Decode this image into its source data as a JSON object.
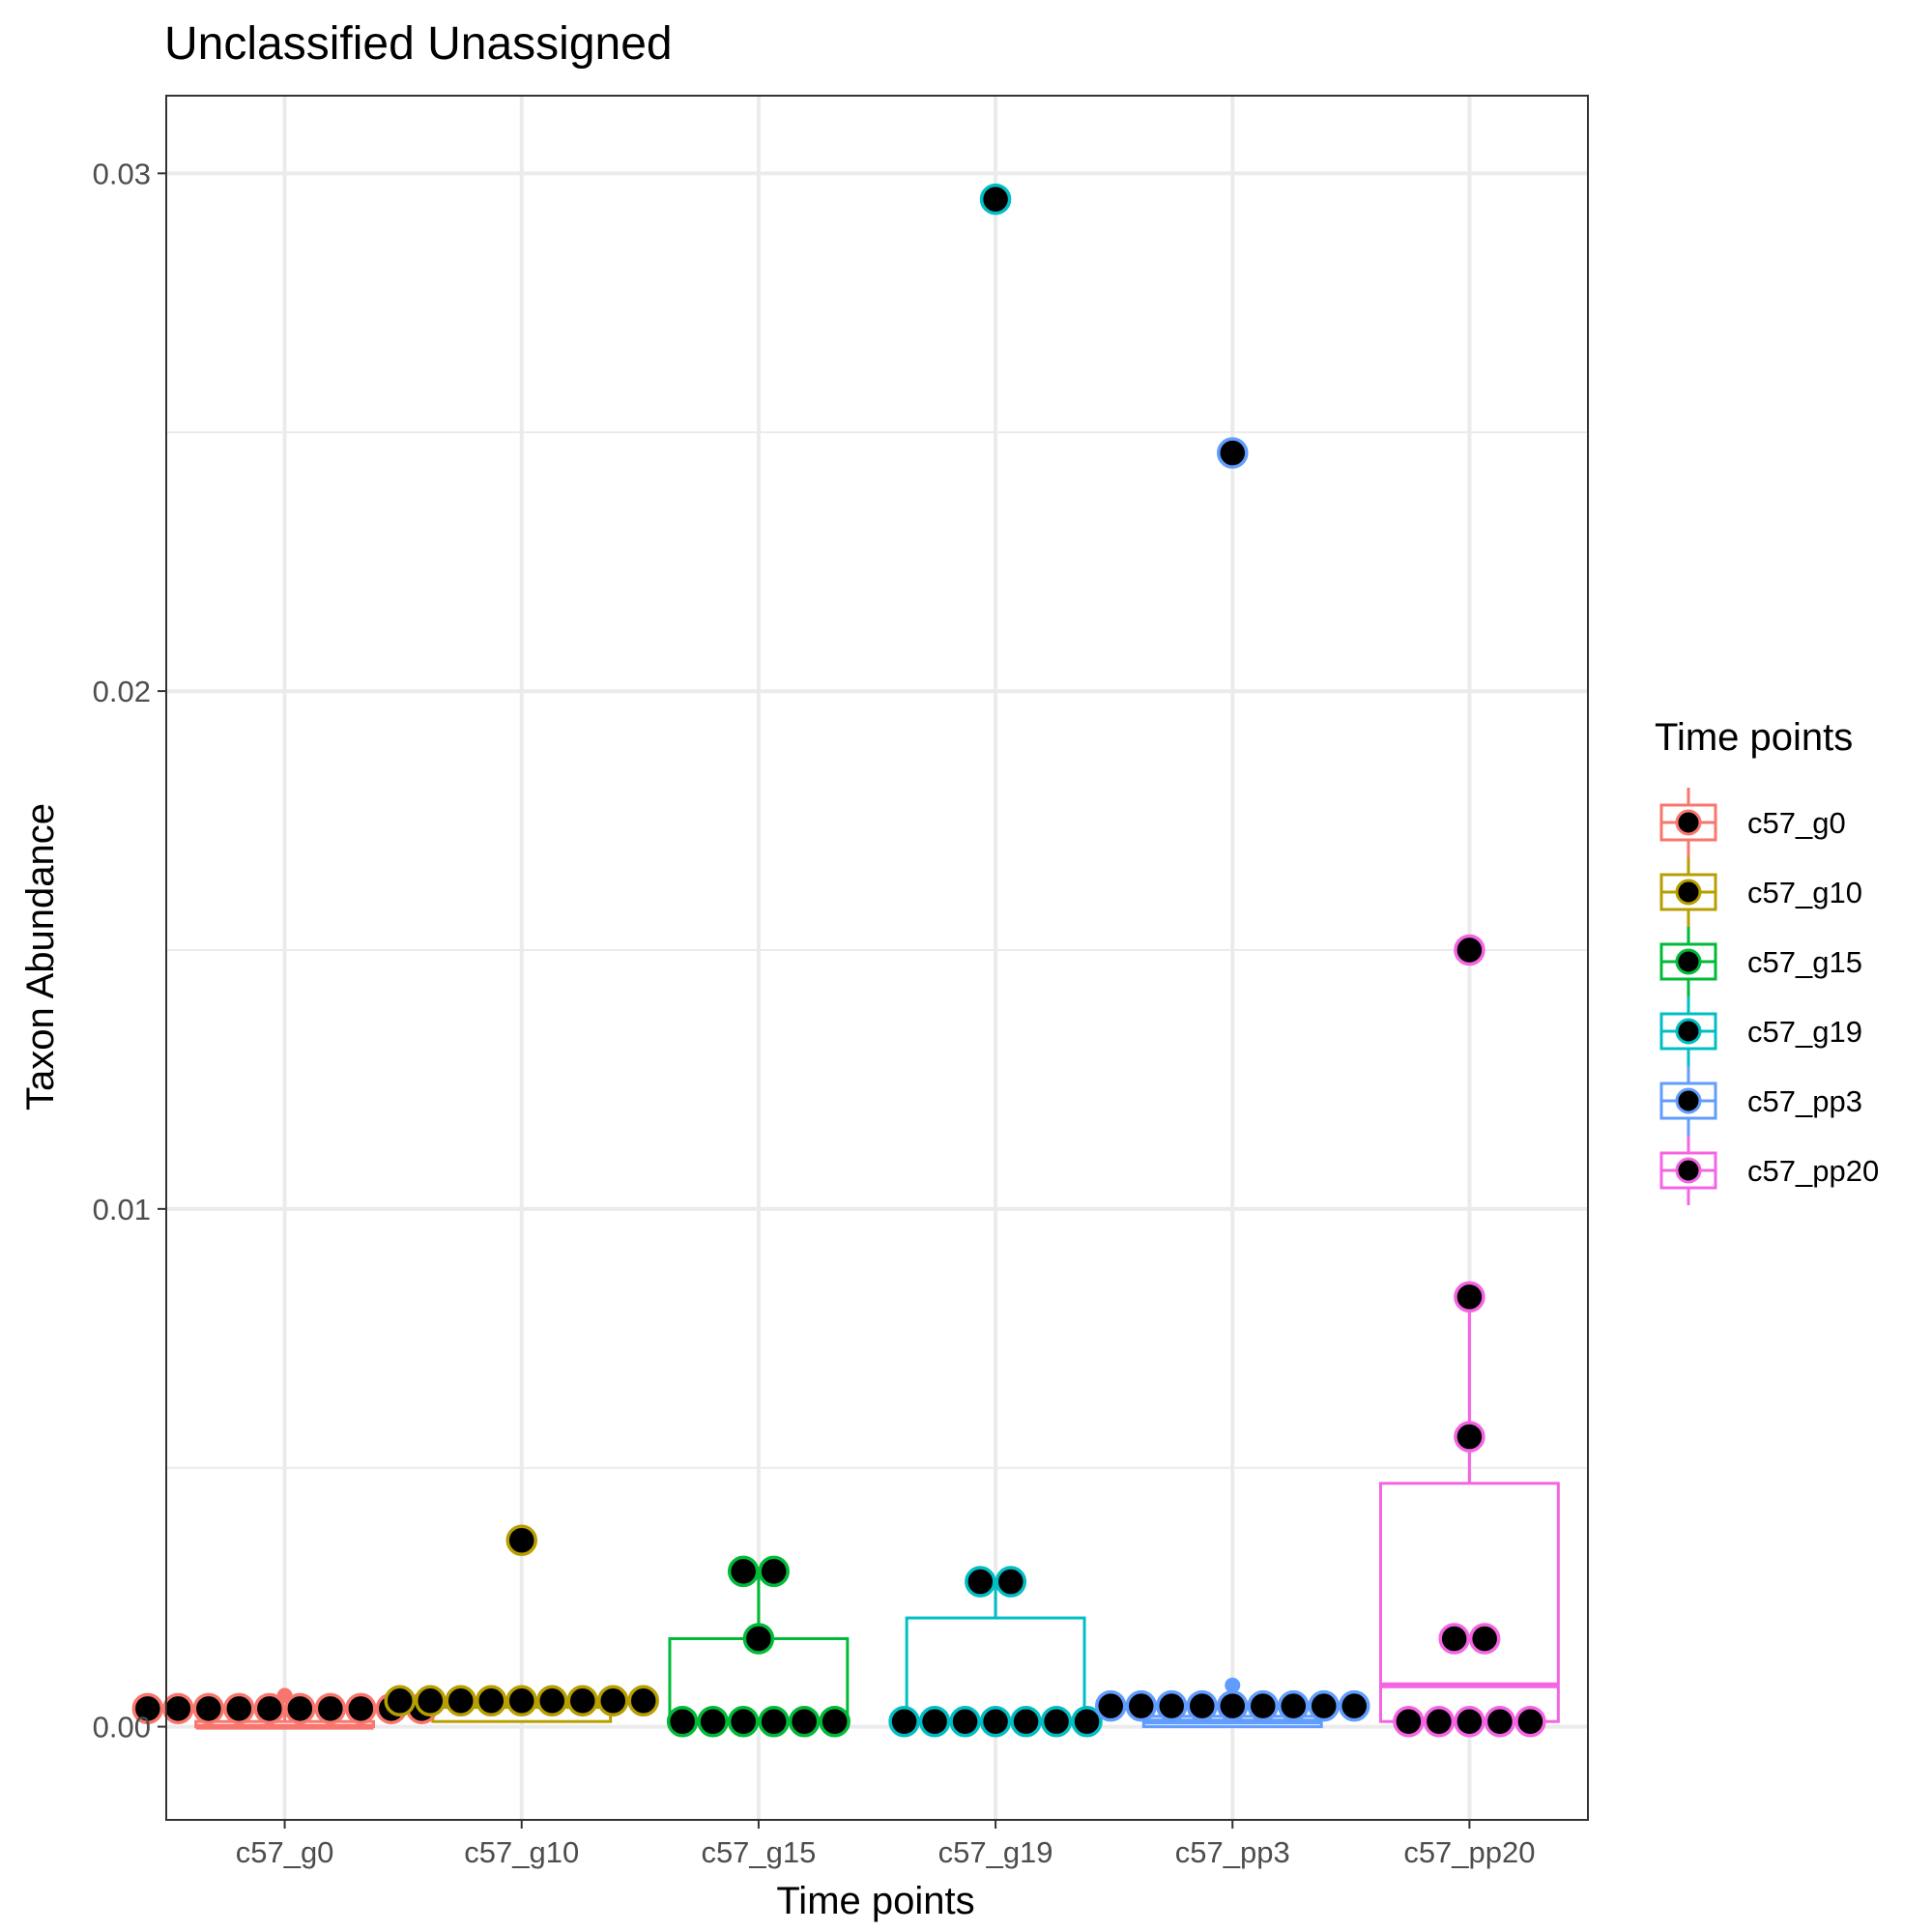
{
  "chart_data": {
    "type": "box",
    "title": "Unclassified Unassigned",
    "xlabel": "Time points",
    "ylabel": "Taxon Abundance",
    "ylim": [
      -0.0018,
      0.0315
    ],
    "yticks": [
      0.0,
      0.01,
      0.02,
      0.03
    ],
    "ytick_labels": [
      "0.00",
      "0.01",
      "0.02",
      "0.03"
    ],
    "grid": true,
    "legend": {
      "title": "Time points",
      "position": "right"
    },
    "categories": [
      "c57_g0",
      "c57_g10",
      "c57_g15",
      "c57_g19",
      "c57_pp3",
      "c57_pp20"
    ],
    "series": [
      {
        "name": "c57_g0",
        "color": "#F8766D",
        "box": {
          "q1": 0.0,
          "median": 0.0,
          "q3": 0.0001,
          "whisker_low": 0.0,
          "whisker_high": 0.0003
        },
        "outliers": [
          0.0006
        ],
        "points": [
          0.00035,
          0.00035,
          0.00035,
          0.00035,
          0.00035,
          0.00035,
          0.00035,
          0.00035,
          0.00035,
          0.00035
        ]
      },
      {
        "name": "c57_g10",
        "color": "#B79F00",
        "box": {
          "q1": 0.0001,
          "median": 0.0004,
          "q3": 0.0005,
          "whisker_low": 0.0001,
          "whisker_high": 0.0008
        },
        "outliers": [],
        "points": [
          0.0005,
          0.0005,
          0.0005,
          0.0005,
          0.0005,
          0.0005,
          0.0005,
          0.0005,
          0.0005,
          0.0036
        ]
      },
      {
        "name": "c57_g15",
        "color": "#00BA38",
        "box": {
          "q1": 0.0001,
          "median": 0.0001,
          "q3": 0.0017,
          "whisker_low": 0.0001,
          "whisker_high": 0.003
        },
        "outliers": [],
        "points": [
          0.0001,
          0.0001,
          0.0001,
          0.0001,
          0.0001,
          0.0001,
          0.0017,
          0.003,
          0.003
        ]
      },
      {
        "name": "c57_g19",
        "color": "#00BFC4",
        "box": {
          "q1": 0.0001,
          "median": 0.0001,
          "q3": 0.0021,
          "whisker_low": 0.0001,
          "whisker_high": 0.0028
        },
        "outliers": [],
        "points": [
          0.0001,
          0.0001,
          0.0001,
          0.0001,
          0.0001,
          0.0001,
          0.0001,
          0.0028,
          0.0028,
          0.0295
        ]
      },
      {
        "name": "c57_pp3",
        "color": "#619CFF",
        "box": {
          "q1": 0.0,
          "median": 0.0001,
          "q3": 0.0002,
          "whisker_low": 0.0,
          "whisker_high": 0.0004
        },
        "outliers": [
          0.0008
        ],
        "points": [
          0.0004,
          0.0004,
          0.0004,
          0.0004,
          0.0004,
          0.0004,
          0.0004,
          0.0004,
          0.0004,
          0.0246
        ]
      },
      {
        "name": "c57_pp20",
        "color": "#F564E3",
        "box": {
          "q1": 0.0001,
          "median": 0.0008,
          "q3": 0.0047,
          "whisker_low": 0.0001,
          "whisker_high": 0.0083
        },
        "outliers": [],
        "points": [
          0.0001,
          0.0001,
          0.0001,
          0.0001,
          0.0001,
          0.0017,
          0.0017,
          0.0056,
          0.0083,
          0.015
        ]
      }
    ]
  }
}
